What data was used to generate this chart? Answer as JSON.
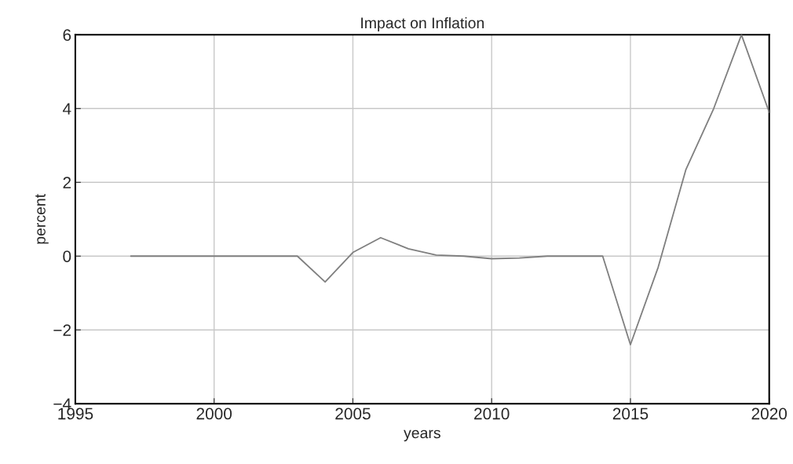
{
  "chart_data": {
    "type": "line",
    "title": "Impact on Inflation",
    "xlabel": "years",
    "ylabel": "percent",
    "x": [
      1997,
      1998,
      1999,
      2000,
      2001,
      2002,
      2003,
      2004,
      2005,
      2006,
      2007,
      2008,
      2009,
      2010,
      2011,
      2012,
      2013,
      2014,
      2015,
      2016,
      2017,
      2018,
      2019,
      2020
    ],
    "series": [
      {
        "color": "#7f7f7f",
        "values": [
          0,
          0,
          0,
          0,
          0,
          0,
          0,
          -0.7,
          0.1,
          0.5,
          0.2,
          0.03,
          0,
          -0.07,
          -0.05,
          0,
          0,
          0,
          -2.4,
          -0.3,
          2.35,
          4.0,
          6.0,
          3.9
        ]
      }
    ],
    "xlim": [
      1995,
      2020
    ],
    "xticks": [
      1995,
      2000,
      2005,
      2010,
      2015,
      2020
    ],
    "ylim": [
      -4,
      6
    ],
    "yticks": [
      {
        "value": -4,
        "label": "−4"
      },
      {
        "value": -2,
        "label": "−2"
      },
      0,
      2,
      4,
      6
    ],
    "grid": true,
    "legend": false,
    "marker": "none",
    "line_style": "solid"
  }
}
